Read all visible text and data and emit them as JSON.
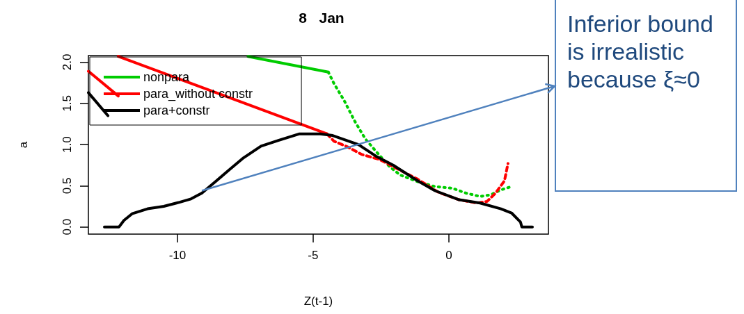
{
  "chart_data": {
    "type": "line",
    "title": "8   Jan",
    "xlabel": "Z(t-1)",
    "ylabel": "a",
    "xlim": [
      -13.28,
      3.67
    ],
    "ylim": [
      -0.087,
      2.08
    ],
    "xticks": [
      -10,
      -5,
      0
    ],
    "yticks": [
      {
        "value": 0,
        "label": "0.0"
      },
      {
        "value": 0.5,
        "label": "0.5"
      },
      {
        "value": 1,
        "label": "1.0"
      },
      {
        "value": 1.5,
        "label": "1.5"
      },
      {
        "value": 2,
        "label": "2.0"
      }
    ],
    "grid": false,
    "legend": "top left",
    "marker": "none",
    "annotations": [
      "Inferior bound is irrealistic because ξ≈0"
    ],
    "series": [
      {
        "name": "nonpara",
        "color": "#00cc00",
        "line_style": "solid",
        "x": [
          -7.4,
          -4.44
        ],
        "values": [
          2.07,
          1.88
        ]
      },
      {
        "color": "#00cc00",
        "line_style": "dotted",
        "x": [
          -4.44,
          -4.23,
          -3.85,
          -3.46,
          -3.08,
          -2.69,
          -2.18,
          -1.79,
          -1.15,
          -0.51,
          0.13,
          0.64,
          1.15,
          1.54,
          1.92,
          2.31
        ],
        "values": [
          1.88,
          1.74,
          1.53,
          1.28,
          1.07,
          0.92,
          0.73,
          0.63,
          0.55,
          0.49,
          0.47,
          0.41,
          0.37,
          0.39,
          0.45,
          0.49
        ]
      },
      {
        "name": "para_without constr",
        "color": "#ff0000",
        "line_style": "solid",
        "x": [
          -12.18,
          -4.49
        ],
        "values": [
          2.07,
          1.13
        ]
      },
      {
        "color": "#ff0000",
        "line_style": "solid",
        "x": [
          -13.28,
          -12.18
        ],
        "values": [
          1.89,
          1.59
        ]
      },
      {
        "color": "#ff0000",
        "line_style": "dashed",
        "x": [
          -4.49,
          -4.23,
          -3.72,
          -3.21,
          -2.56,
          -1.92,
          -1.15,
          -0.38,
          0.38,
          1.03,
          1.41,
          1.72,
          2.05,
          2.18
        ],
        "values": [
          1.13,
          1.04,
          0.97,
          0.88,
          0.82,
          0.71,
          0.58,
          0.42,
          0.33,
          0.29,
          0.31,
          0.41,
          0.56,
          0.77
        ]
      },
      {
        "name": "para+constr",
        "color": "#000000",
        "line_style": "solid",
        "x": [
          -12.69,
          -12.15,
          -11.97,
          -11.67,
          -11.1,
          -10.5,
          -9.92,
          -9.5,
          -9.1,
          -8.6,
          -8.1,
          -7.56,
          -6.92,
          -6.28,
          -5.5,
          -4.74,
          -4.28,
          -3.33,
          -2.69,
          -2.05,
          -1.15,
          -0.51,
          0.38,
          1.15,
          1.92,
          2.31,
          2.64,
          2.69,
          3.08
        ],
        "values": [
          0,
          0,
          0.08,
          0.16,
          0.22,
          0.25,
          0.3,
          0.34,
          0.41,
          0.55,
          0.69,
          0.84,
          0.98,
          1.05,
          1.13,
          1.13,
          1.11,
          1,
          0.86,
          0.75,
          0.56,
          0.44,
          0.33,
          0.29,
          0.22,
          0.17,
          0.06,
          0,
          0
        ]
      },
      {
        "color": "#000000",
        "line_style": "solid",
        "x": [
          -13.28,
          -12.56
        ],
        "values": [
          1.63,
          1.35
        ]
      }
    ]
  }
}
